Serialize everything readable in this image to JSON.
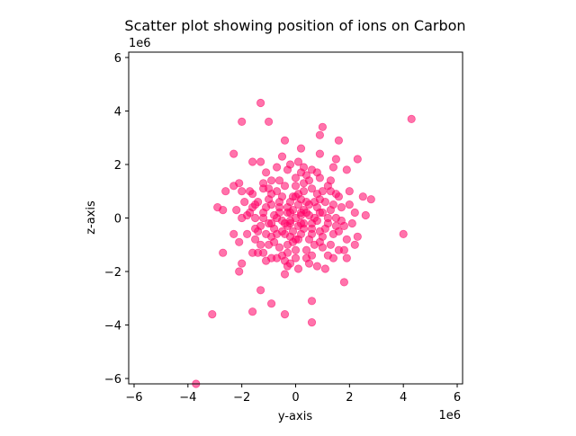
{
  "chart_data": {
    "type": "scatter",
    "title": "Scatter plot showing position of ions on Carbon",
    "xlabel": "y-axis",
    "ylabel": "z-axis",
    "x_offset_label": "1e6",
    "y_offset_label": "1e6",
    "xlim": [
      -6.2,
      6.2
    ],
    "ylim": [
      -6.2,
      6.2
    ],
    "scale": 1000000,
    "xticks": [
      "−6",
      "−4",
      "−2",
      "0",
      "2",
      "4",
      "6"
    ],
    "yticks": [
      "−6",
      "−4",
      "−2",
      "0",
      "2",
      "4",
      "6"
    ],
    "xtick_values": [
      -6,
      -4,
      -2,
      0,
      2,
      4,
      6
    ],
    "ytick_values": [
      -6,
      -4,
      -2,
      0,
      2,
      4,
      6
    ],
    "grid": false,
    "marker_color": "#ff0066",
    "marker_alpha": 0.55,
    "series": [
      {
        "points": [
          [
            -3.7,
            -6.2
          ],
          [
            -3.1,
            -3.6
          ],
          [
            -2.7,
            -1.3
          ],
          [
            -2.1,
            -2.0
          ],
          [
            -1.6,
            -3.5
          ],
          [
            -1.3,
            -2.7
          ],
          [
            -0.9,
            -3.2
          ],
          [
            -0.4,
            -3.6
          ],
          [
            0.6,
            -3.9
          ],
          [
            0.6,
            -3.1
          ],
          [
            1.8,
            -2.4
          ],
          [
            4.0,
            -0.6
          ],
          [
            4.3,
            3.7
          ],
          [
            -1.3,
            4.3
          ],
          [
            -2.0,
            3.6
          ],
          [
            -1.0,
            3.6
          ],
          [
            1.0,
            3.4
          ],
          [
            0.9,
            3.1
          ],
          [
            1.6,
            2.9
          ],
          [
            -0.4,
            2.9
          ],
          [
            -2.3,
            2.4
          ],
          [
            0.2,
            2.6
          ],
          [
            0.9,
            2.4
          ],
          [
            1.5,
            2.2
          ],
          [
            2.3,
            2.2
          ],
          [
            -1.6,
            2.1
          ],
          [
            -1.3,
            2.1
          ],
          [
            -0.5,
            2.3
          ],
          [
            0.1,
            2.1
          ],
          [
            1.4,
            1.9
          ],
          [
            1.9,
            1.8
          ],
          [
            -1.1,
            1.7
          ],
          [
            -0.3,
            1.8
          ],
          [
            0.8,
            1.7
          ],
          [
            -0.9,
            1.4
          ],
          [
            1.3,
            1.4
          ],
          [
            2.0,
            1.0
          ],
          [
            2.5,
            0.8
          ],
          [
            2.8,
            0.7
          ],
          [
            -2.1,
            1.3
          ],
          [
            -2.3,
            1.2
          ],
          [
            -2.0,
            1.0
          ],
          [
            -1.7,
            1.0
          ],
          [
            -2.6,
            1.0
          ],
          [
            2.2,
            0.2
          ],
          [
            2.6,
            0.1
          ],
          [
            -2.7,
            0.3
          ],
          [
            -2.9,
            0.4
          ],
          [
            -2.2,
            0.3
          ],
          [
            -2.3,
            -0.6
          ],
          [
            -2.1,
            -0.9
          ],
          [
            -2.0,
            -1.7
          ],
          [
            -1.6,
            -1.3
          ],
          [
            -1.4,
            -1.3
          ],
          [
            -1.1,
            -1.6
          ],
          [
            1.4,
            -1.5
          ],
          [
            1.9,
            -1.5
          ],
          [
            2.2,
            -1.0
          ],
          [
            2.3,
            -0.7
          ],
          [
            1.8,
            -1.2
          ],
          [
            -0.7,
            -1.5
          ],
          [
            -0.4,
            -2.1
          ],
          [
            0.1,
            -1.9
          ],
          [
            0.4,
            -1.5
          ],
          [
            0.8,
            -1.8
          ],
          [
            1.1,
            -1.9
          ],
          [
            1.6,
            -1.2
          ],
          [
            -1.5,
            0.5
          ],
          [
            -1.8,
            0.1
          ],
          [
            -1.5,
            -0.4
          ],
          [
            1.7,
            0.4
          ],
          [
            1.8,
            -0.3
          ],
          [
            1.6,
            0.8
          ],
          [
            -1.2,
            1.1
          ],
          [
            1.2,
            1.2
          ],
          [
            -1.3,
            -1.0
          ],
          [
            1.3,
            -1.0
          ],
          [
            0.0,
            0.0
          ],
          [
            0.2,
            0.1
          ],
          [
            -0.2,
            -0.1
          ],
          [
            0.1,
            -0.3
          ],
          [
            -0.1,
            0.3
          ],
          [
            0.4,
            0.2
          ],
          [
            -0.4,
            -0.2
          ],
          [
            0.3,
            -0.4
          ],
          [
            -0.3,
            0.4
          ],
          [
            0.5,
            0.5
          ],
          [
            -0.5,
            -0.5
          ],
          [
            0.6,
            -0.2
          ],
          [
            -0.6,
            0.2
          ],
          [
            0.2,
            0.7
          ],
          [
            -0.2,
            -0.7
          ],
          [
            0.7,
            0.0
          ],
          [
            -0.7,
            0.0
          ],
          [
            0.0,
            0.8
          ],
          [
            0.0,
            -0.8
          ],
          [
            0.8,
            0.4
          ],
          [
            -0.8,
            -0.4
          ],
          [
            0.5,
            -0.8
          ],
          [
            -0.5,
            0.8
          ],
          [
            0.9,
            -0.5
          ],
          [
            -0.9,
            0.5
          ],
          [
            0.3,
            1.0
          ],
          [
            -0.3,
            -1.0
          ],
          [
            1.0,
            0.2
          ],
          [
            -1.0,
            -0.2
          ],
          [
            0.8,
            0.9
          ],
          [
            -0.8,
            -0.9
          ],
          [
            0.9,
            -0.9
          ],
          [
            -0.9,
            0.9
          ],
          [
            1.1,
            0.6
          ],
          [
            -1.1,
            -0.6
          ],
          [
            0.6,
            1.1
          ],
          [
            -0.6,
            -1.1
          ],
          [
            1.1,
            -0.4
          ],
          [
            -1.1,
            0.4
          ],
          [
            0.4,
            -1.2
          ],
          [
            -0.4,
            1.2
          ],
          [
            1.2,
            0.0
          ],
          [
            -1.2,
            0.0
          ],
          [
            0.0,
            1.2
          ],
          [
            0.0,
            -1.2
          ],
          [
            0.1,
            0.5
          ],
          [
            -0.1,
            -0.5
          ],
          [
            0.5,
            0.1
          ],
          [
            -0.5,
            -0.1
          ],
          [
            0.3,
            0.3
          ],
          [
            -0.3,
            -0.3
          ],
          [
            0.3,
            -0.2
          ],
          [
            -0.3,
            0.2
          ],
          [
            0.7,
            0.6
          ],
          [
            -0.7,
            -0.6
          ],
          [
            0.6,
            -0.6
          ],
          [
            -0.6,
            0.6
          ],
          [
            0.2,
            -0.6
          ],
          [
            -0.2,
            0.6
          ],
          [
            0.9,
            0.2
          ],
          [
            -0.9,
            -0.2
          ],
          [
            0.1,
            0.9
          ],
          [
            -0.1,
            -0.9
          ],
          [
            1.0,
            -0.7
          ],
          [
            -1.0,
            0.7
          ],
          [
            0.7,
            -1.0
          ],
          [
            -0.7,
            1.0
          ],
          [
            1.3,
            0.3
          ],
          [
            -1.3,
            -0.3
          ],
          [
            0.3,
            1.3
          ],
          [
            -0.3,
            -1.3
          ],
          [
            1.2,
            -0.2
          ],
          [
            -1.2,
            0.2
          ],
          [
            1.4,
            0.5
          ],
          [
            -1.4,
            -0.5
          ],
          [
            0.5,
            1.4
          ],
          [
            -0.5,
            -1.4
          ],
          [
            1.4,
            -0.6
          ],
          [
            -1.4,
            0.6
          ],
          [
            0.6,
            -1.4
          ],
          [
            -0.6,
            1.4
          ],
          [
            1.0,
            1.0
          ],
          [
            -1.0,
            -1.0
          ],
          [
            1.0,
            -1.1
          ],
          [
            -1.0,
            1.1
          ],
          [
            1.5,
            0.0
          ],
          [
            -1.5,
            0.0
          ],
          [
            0.0,
            1.5
          ],
          [
            0.0,
            -1.5
          ],
          [
            0.4,
            0.6
          ],
          [
            -0.4,
            -0.6
          ],
          [
            0.6,
            -0.4
          ],
          [
            -0.6,
            0.4
          ],
          [
            0.8,
            -0.1
          ],
          [
            -0.8,
            0.1
          ],
          [
            0.1,
            -0.8
          ],
          [
            -0.1,
            0.8
          ],
          [
            1.6,
            -0.5
          ],
          [
            -1.6,
            0.4
          ],
          [
            1.5,
            0.9
          ],
          [
            -1.5,
            -0.8
          ],
          [
            0.9,
            1.5
          ],
          [
            -0.9,
            -1.5
          ],
          [
            0.4,
            1.6
          ],
          [
            -0.4,
            -1.6
          ],
          [
            1.7,
            -0.1
          ],
          [
            -1.7,
            0.2
          ],
          [
            0.2,
            1.7
          ],
          [
            -0.2,
            -1.7
          ],
          [
            -1.9,
            0.6
          ],
          [
            -1.8,
            -0.6
          ],
          [
            1.9,
            -0.8
          ],
          [
            2.0,
            0.5
          ],
          [
            -2.0,
            0.0
          ],
          [
            2.1,
            -0.2
          ],
          [
            0.3,
            1.9
          ],
          [
            -0.2,
            2.0
          ],
          [
            0.6,
            1.8
          ],
          [
            -0.7,
            1.9
          ],
          [
            0.5,
            -1.7
          ],
          [
            -0.3,
            -1.8
          ],
          [
            1.2,
            -1.4
          ],
          [
            -1.2,
            -1.3
          ],
          [
            1.3,
            1.0
          ],
          [
            -1.2,
            1.3
          ],
          [
            1.5,
            -0.3
          ],
          [
            -1.6,
            0.9
          ],
          [
            0.9,
            0.7
          ],
          [
            -0.9,
            -0.7
          ],
          [
            0.2,
            0.2
          ],
          [
            -0.2,
            0.2
          ],
          [
            0.2,
            -0.2
          ],
          [
            -0.2,
            -0.2
          ]
        ]
      }
    ]
  }
}
